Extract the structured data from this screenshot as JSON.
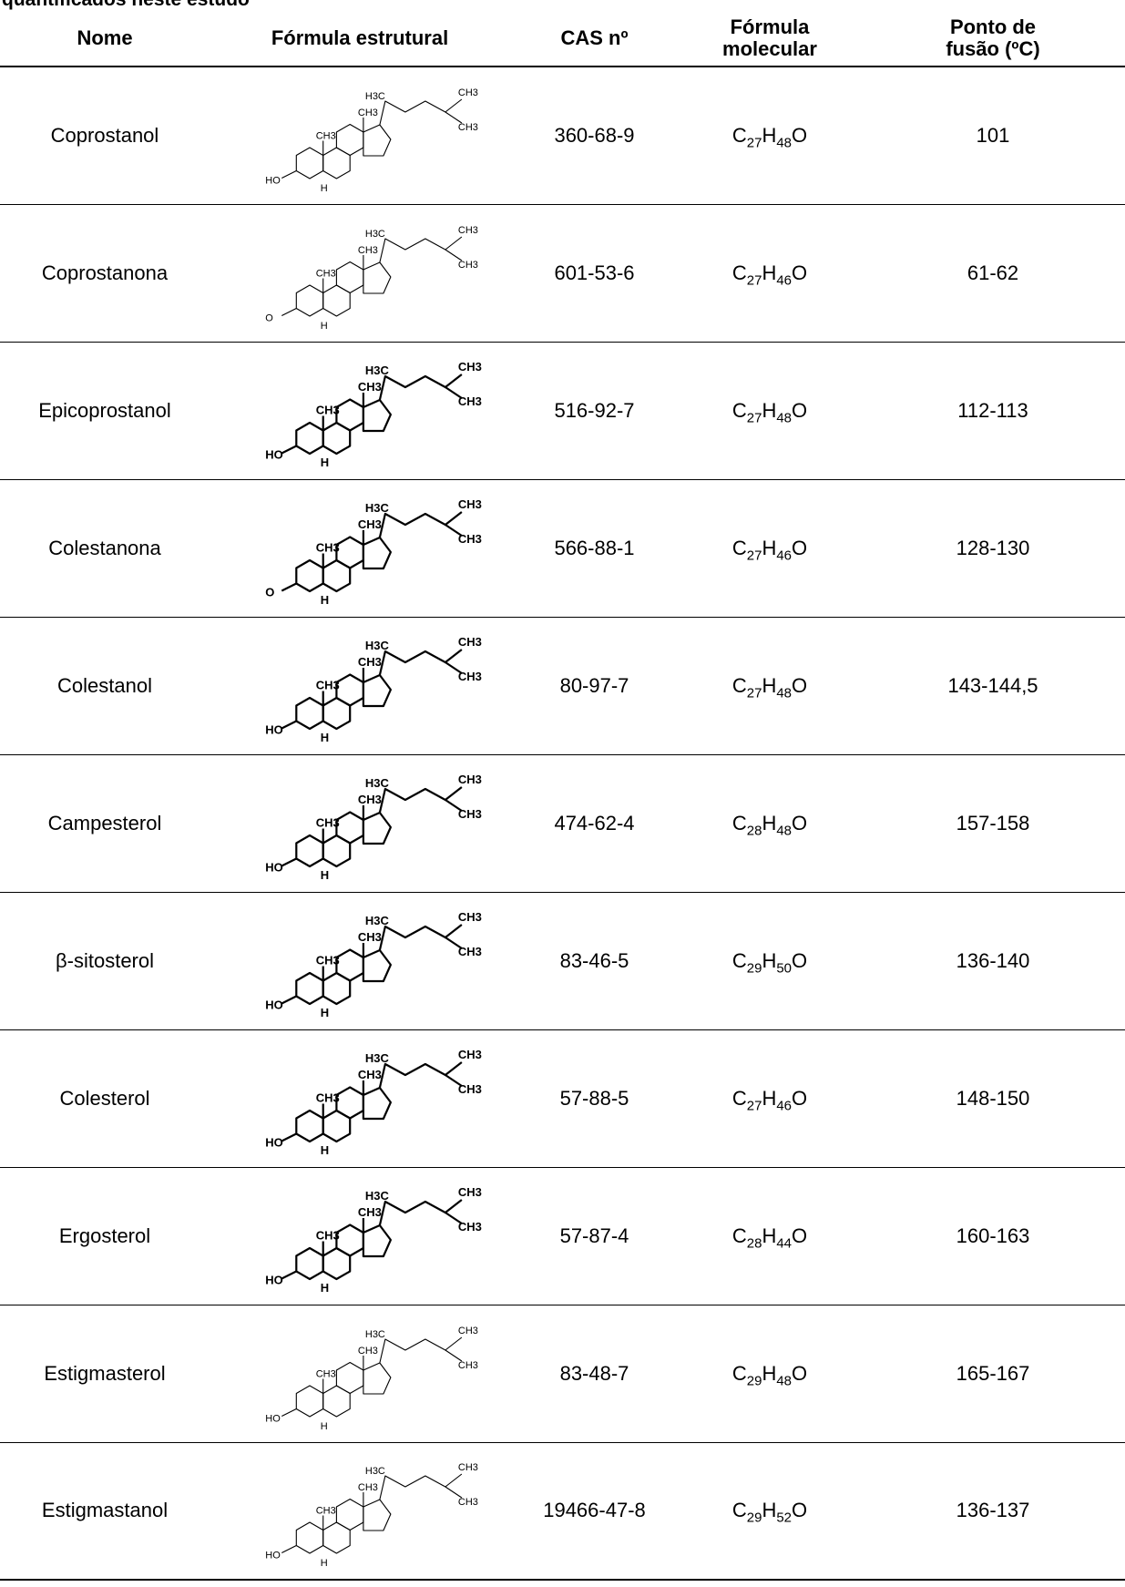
{
  "caption": "quantificados neste estudo",
  "table": {
    "headers": {
      "name": "Nome",
      "structure": "Fórmula estrutural",
      "cas": "CAS nº",
      "formula_line1": "Fórmula",
      "formula_line2": "molecular",
      "mp_line1": "Ponto de",
      "mp_line2": "fusão (ºC)"
    },
    "rows": [
      {
        "name": "Coprostanol",
        "cas": "360-68-9",
        "formula": {
          "c": "27",
          "h": "48",
          "tail": "O"
        },
        "mp": "101",
        "ring_group": "HO",
        "style": "thin"
      },
      {
        "name": "Coprostanona",
        "cas": "601-53-6",
        "formula": {
          "c": "27",
          "h": "46",
          "tail": "O"
        },
        "mp": "61-62",
        "ring_group": "O",
        "style": "thin"
      },
      {
        "name": "Epicoprostanol",
        "cas": "516-92-7",
        "formula": {
          "c": "27",
          "h": "48",
          "tail": "O"
        },
        "mp": "112-113",
        "ring_group": "HO",
        "style": "bold"
      },
      {
        "name": "Colestanona",
        "cas": "566-88-1",
        "formula": {
          "c": "27",
          "h": "46",
          "tail": "O"
        },
        "mp": "128-130",
        "ring_group": "O",
        "style": "bold"
      },
      {
        "name": "Colestanol",
        "cas": "80-97-7",
        "formula": {
          "c": "27",
          "h": "48",
          "tail": "O"
        },
        "mp": "143-144,5",
        "ring_group": "HO",
        "style": "bold"
      },
      {
        "name": "Campesterol",
        "cas": "474-62-4",
        "formula": {
          "c": "28",
          "h": "48",
          "tail": "O"
        },
        "mp": "157-158",
        "ring_group": "HO",
        "style": "bold"
      },
      {
        "name": "β-sitosterol",
        "cas": "83-46-5",
        "formula": {
          "c": "29",
          "h": "50",
          "tail": "O"
        },
        "mp": "136-140",
        "ring_group": "HO",
        "style": "bold"
      },
      {
        "name": "Colesterol",
        "cas": "57-88-5",
        "formula": {
          "c": "27",
          "h": "46",
          "tail": "O"
        },
        "mp": "148-150",
        "ring_group": "HO",
        "style": "bold"
      },
      {
        "name": "Ergosterol",
        "cas": "57-87-4",
        "formula": {
          "c": "28",
          "h": "44",
          "tail": "O"
        },
        "mp": "160-163",
        "ring_group": "HO",
        "style": "bold"
      },
      {
        "name": "Estigmasterol",
        "cas": "83-48-7",
        "formula": {
          "c": "29",
          "h": "48",
          "tail": "O"
        },
        "mp": "165-167",
        "ring_group": "HO",
        "style": "thin"
      },
      {
        "name": "Estigmastanol",
        "cas": "19466-47-8",
        "formula": {
          "c": "29",
          "h": "52",
          "tail": "O"
        },
        "mp": "136-137",
        "ring_group": "HO",
        "style": "thin"
      }
    ]
  },
  "structure_labels": {
    "methyl_a": "CH3",
    "methyl_b": "H3C",
    "hydrogen": "H"
  }
}
